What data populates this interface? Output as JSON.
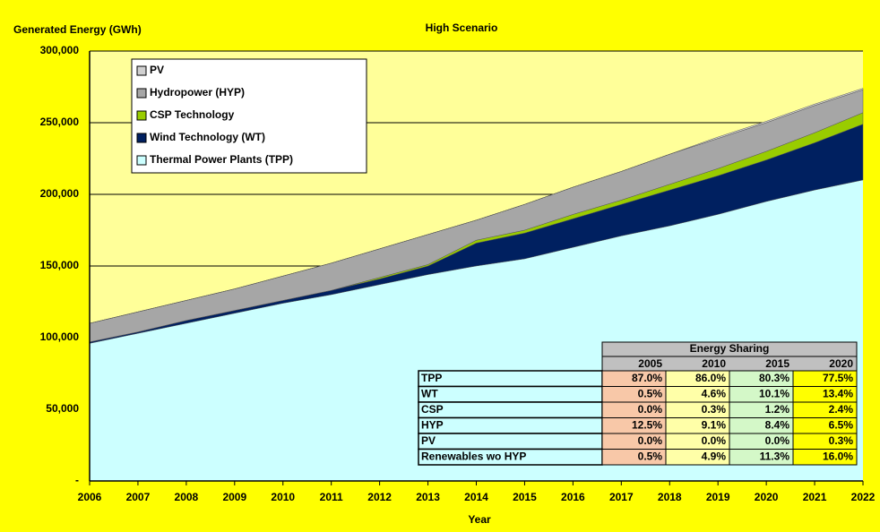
{
  "chart_data": {
    "type": "stacked_area",
    "title": "High Scenario",
    "y_label": "Generated Energy (GWh)",
    "x_label": "Year",
    "x": [
      2006,
      2007,
      2008,
      2009,
      2010,
      2011,
      2012,
      2013,
      2014,
      2015,
      2016,
      2017,
      2018,
      2019,
      2020,
      2021,
      2022
    ],
    "xlim": [
      2006,
      2022
    ],
    "ylim": [
      0,
      300000
    ],
    "yticks": [
      {
        "value": 0,
        "label": "-"
      },
      {
        "value": 50000,
        "label": "50,000"
      },
      {
        "value": 100000,
        "label": "100,000"
      },
      {
        "value": 150000,
        "label": "150,000"
      },
      {
        "value": 200000,
        "label": "200,000"
      },
      {
        "value": 250000,
        "label": "250,000"
      },
      {
        "value": 300000,
        "label": "300,000"
      }
    ],
    "grid": true,
    "legend": "upper left",
    "series": [
      {
        "name": "Thermal Power Plants (TPP)",
        "color": "#ccffff",
        "values": [
          96000,
          103000,
          110000,
          117000,
          124000,
          130000,
          137000,
          144000,
          150000,
          155000,
          163000,
          171000,
          178000,
          186000,
          195000,
          203000,
          210000
        ]
      },
      {
        "name": "Wind Technology (WT)",
        "color": "#002060",
        "values": [
          1000,
          1000,
          2000,
          2000,
          2000,
          3000,
          4000,
          6000,
          16000,
          18000,
          20000,
          22000,
          25000,
          27000,
          29000,
          33000,
          39000
        ]
      },
      {
        "name": "CSP Technology",
        "color": "#99cc00",
        "values": [
          0,
          0,
          0,
          0,
          0,
          0,
          1000,
          1000,
          2000,
          2000,
          3000,
          3000,
          4000,
          5000,
          6000,
          7000,
          8000
        ]
      },
      {
        "name": "Hydropower (HYP)",
        "color": "#a6a6a6",
        "values": [
          13000,
          14000,
          14000,
          15000,
          17000,
          19000,
          20000,
          21000,
          14000,
          18000,
          19000,
          20000,
          21000,
          21000,
          20000,
          19000,
          16000
        ]
      },
      {
        "name": "PV",
        "color": "#d0d0d0",
        "values": [
          0,
          0,
          0,
          0,
          0,
          0,
          0,
          0,
          0,
          0,
          0,
          0,
          0,
          1000,
          1000,
          1000,
          1000
        ]
      }
    ],
    "table": {
      "title": "Energy Sharing",
      "columns": [
        2005,
        2010,
        2015,
        2020
      ],
      "column_colors": [
        "#f8c8a8",
        "#ffffa8",
        "#d4f8c8",
        "#ffff00"
      ],
      "rows": [
        {
          "label": "TPP",
          "cells": [
            "87.0%",
            "86.0%",
            "80.3%",
            "77.5%"
          ]
        },
        {
          "label": "WT",
          "cells": [
            "0.5%",
            "4.6%",
            "10.1%",
            "13.4%"
          ]
        },
        {
          "label": "CSP",
          "cells": [
            "0.0%",
            "0.3%",
            "1.2%",
            "2.4%"
          ]
        },
        {
          "label": "HYP",
          "cells": [
            "12.5%",
            "9.1%",
            "8.4%",
            "6.5%"
          ]
        },
        {
          "label": "PV",
          "cells": [
            "0.0%",
            "0.0%",
            "0.0%",
            "0.3%"
          ]
        },
        {
          "label": "Renewables wo HYP",
          "cells": [
            "0.5%",
            "4.9%",
            "11.3%",
            "16.0%"
          ]
        }
      ]
    }
  }
}
